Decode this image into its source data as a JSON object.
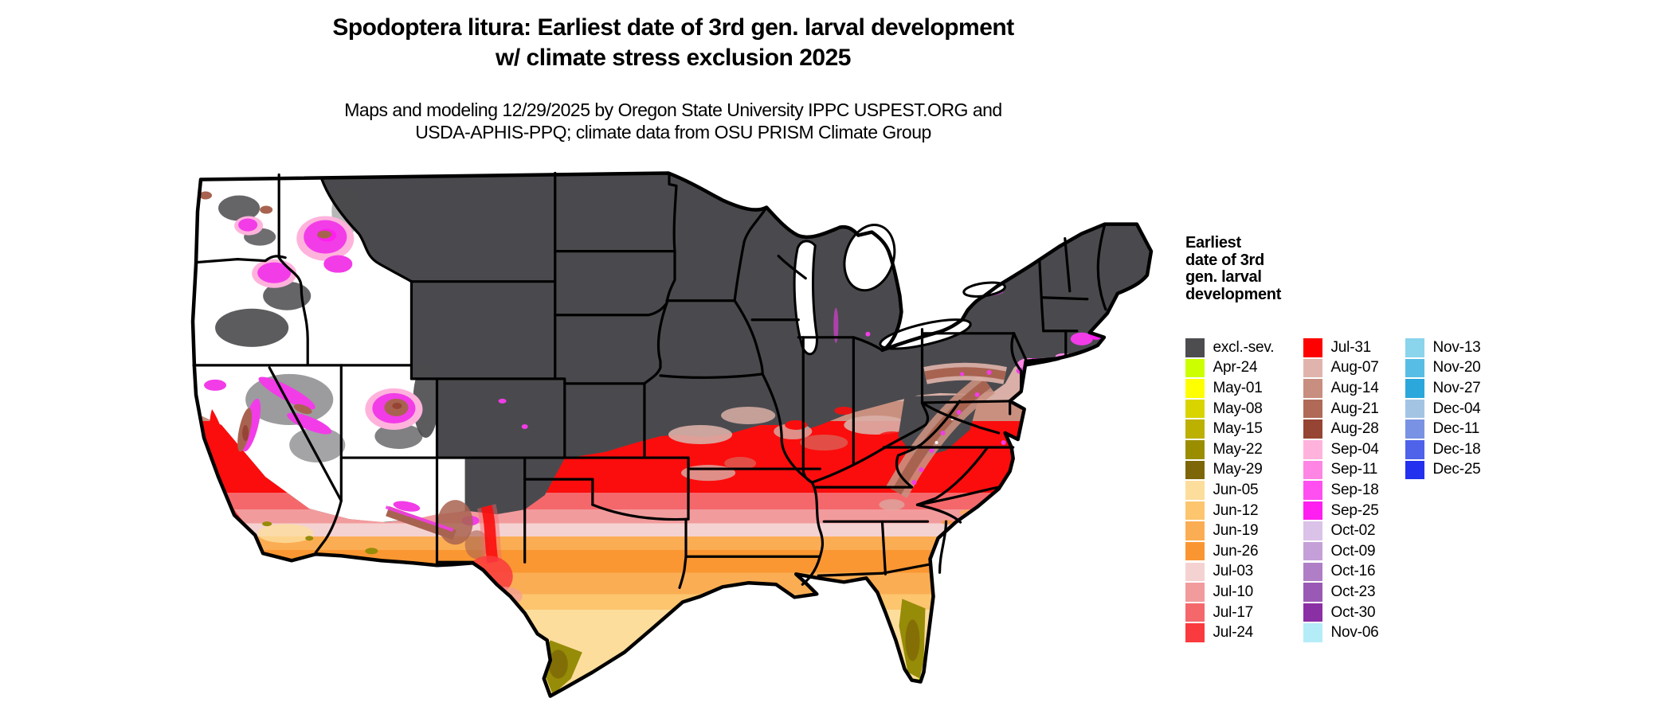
{
  "title": {
    "line1": "Spodoptera litura: Earliest date of 3rd gen. larval development",
    "line2": "w/ climate stress exclusion 2025"
  },
  "subtitle": {
    "line1": "Maps and modeling 12/29/2025 by Oregon State University IPPC USPEST.ORG and",
    "line2": "USDA-APHIS-PPQ; climate data from OSU PRISM Climate Group"
  },
  "legend": {
    "title_lines": [
      "Earliest",
      "date of 3rd",
      "gen. larval",
      "development"
    ],
    "columns": [
      [
        {
          "label": "excl.-sev.",
          "color": "#4D4D50"
        },
        {
          "label": "Apr-24",
          "color": "#CCFF00"
        },
        {
          "label": "May-01",
          "color": "#FFFF00"
        },
        {
          "label": "May-08",
          "color": "#D9D400"
        },
        {
          "label": "May-15",
          "color": "#BCB000"
        },
        {
          "label": "May-22",
          "color": "#9A8E00"
        },
        {
          "label": "May-29",
          "color": "#7D6608"
        },
        {
          "label": "Jun-05",
          "color": "#FCDD9C"
        },
        {
          "label": "Jun-12",
          "color": "#FCC56E"
        },
        {
          "label": "Jun-19",
          "color": "#FBAD53"
        },
        {
          "label": "Jun-26",
          "color": "#FA9632"
        },
        {
          "label": "Jul-03",
          "color": "#F5D2D2"
        },
        {
          "label": "Jul-10",
          "color": "#F29B9D"
        },
        {
          "label": "Jul-17",
          "color": "#F4686C"
        },
        {
          "label": "Jul-24",
          "color": "#F93A3E"
        }
      ],
      [
        {
          "label": "Jul-31",
          "color": "#FF0000"
        },
        {
          "label": "Aug-07",
          "color": "#E0B4AC"
        },
        {
          "label": "Aug-14",
          "color": "#C88E7F"
        },
        {
          "label": "Aug-21",
          "color": "#B06A57"
        },
        {
          "label": "Aug-28",
          "color": "#964433"
        },
        {
          "label": "Sep-04",
          "color": "#FFB3DC"
        },
        {
          "label": "Sep-11",
          "color": "#FF85E4"
        },
        {
          "label": "Sep-18",
          "color": "#FF4FF0"
        },
        {
          "label": "Sep-25",
          "color": "#FF1FF0"
        },
        {
          "label": "Oct-02",
          "color": "#DBC2E8"
        },
        {
          "label": "Oct-09",
          "color": "#C5A0D8"
        },
        {
          "label": "Oct-16",
          "color": "#AF7EC6"
        },
        {
          "label": "Oct-23",
          "color": "#9A59B5"
        },
        {
          "label": "Oct-30",
          "color": "#8B2FA5"
        },
        {
          "label": "Nov-06",
          "color": "#B4ECF8"
        }
      ],
      [
        {
          "label": "Nov-13",
          "color": "#8AD4EC"
        },
        {
          "label": "Nov-20",
          "color": "#58BDE4"
        },
        {
          "label": "Nov-27",
          "color": "#2BA7DB"
        },
        {
          "label": "Dec-04",
          "color": "#A4C4E4"
        },
        {
          "label": "Dec-11",
          "color": "#7A92E4"
        },
        {
          "label": "Dec-18",
          "color": "#4E62EA"
        },
        {
          "label": "Dec-25",
          "color": "#2330EE"
        }
      ]
    ]
  },
  "map": {
    "palette": {
      "excluded": "#4A4A4E",
      "no_data": "#FFFFFF",
      "water": "#FFFFFF",
      "border": "#000000",
      "red": "#FB0D0D",
      "red2": "#F93A3E",
      "salmon": "#F4686C",
      "pink": "#F29B9D",
      "light_pink": "#F5D2D2",
      "dusty": "#D9AFA7",
      "rose": "#C9907F",
      "brown": "#A86350",
      "dark_brown": "#964433",
      "orange": "#FBAD53",
      "deep_orange": "#FA9732",
      "light_orange": "#FCC56E",
      "tan": "#FCDD9C",
      "olive": "#968C07",
      "dark_olive": "#7D6608",
      "yellow_green": "#DFF400",
      "magenta": "#F23CE8",
      "bright_magenta": "#FF1FF0",
      "pink_fringe": "#FFB3DC",
      "pink2": "#FF85E4",
      "purple": "#9A59B5",
      "light_cyan": "#B4ECF8"
    }
  }
}
